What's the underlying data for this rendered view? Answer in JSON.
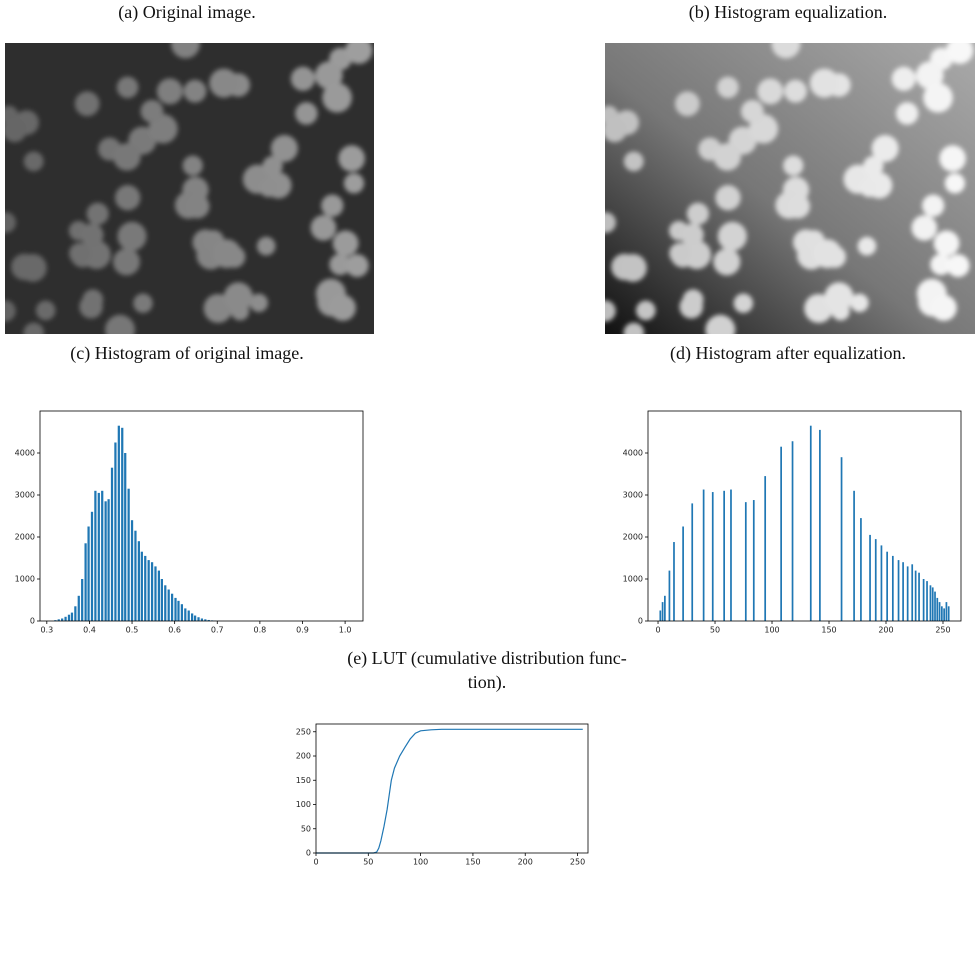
{
  "images": [
    {
      "caption": "(a) Original image."
    },
    {
      "caption": "(b) Histogram equalization."
    }
  ],
  "chart_data": [
    {
      "type": "bar",
      "title_lines": [
        "(c) Histogram of original image."
      ],
      "color": "#1f77b4",
      "x": [
        0.32,
        0.328,
        0.336,
        0.344,
        0.352,
        0.359,
        0.367,
        0.375,
        0.383,
        0.391,
        0.398,
        0.406,
        0.414,
        0.422,
        0.43,
        0.438,
        0.445,
        0.453,
        0.461,
        0.469,
        0.477,
        0.484,
        0.492,
        0.5,
        0.508,
        0.516,
        0.523,
        0.531,
        0.539,
        0.547,
        0.555,
        0.563,
        0.57,
        0.578,
        0.586,
        0.594,
        0.602,
        0.609,
        0.617,
        0.625,
        0.633,
        0.641,
        0.648,
        0.656,
        0.664,
        0.672,
        0.68,
        0.688,
        0.695,
        0.703
      ],
      "values": [
        20,
        40,
        60,
        100,
        150,
        200,
        350,
        600,
        1000,
        1850,
        2250,
        2600,
        3100,
        3050,
        3100,
        2850,
        2900,
        3650,
        4250,
        4650,
        4600,
        4000,
        3150,
        2400,
        2150,
        1900,
        1650,
        1550,
        1450,
        1400,
        1300,
        1200,
        1000,
        850,
        750,
        650,
        550,
        480,
        400,
        300,
        250,
        180,
        130,
        90,
        60,
        40,
        25,
        15,
        8,
        5
      ],
      "xlim": [
        0.284,
        1.042
      ],
      "xticks": [
        0.3,
        0.4,
        0.5,
        0.6,
        0.7,
        0.8,
        0.9,
        {
          "value": 1,
          "label": "1.0"
        }
      ],
      "ylim": [
        0,
        5000
      ],
      "yticks": [
        0,
        1000,
        2000,
        3000,
        4000
      ]
    },
    {
      "type": "bar",
      "title_lines": [
        "(d) Histogram after equalization."
      ],
      "color": "#1f77b4",
      "x": [
        2,
        4,
        6,
        10,
        14,
        22,
        30,
        40,
        48,
        58,
        64,
        77,
        84,
        94,
        108,
        118,
        134,
        142,
        161,
        172,
        178,
        186,
        191,
        196,
        201,
        206,
        211,
        215,
        219,
        223,
        226,
        229,
        233,
        236,
        239,
        241,
        243,
        245,
        247,
        249,
        251,
        253,
        255
      ],
      "values": [
        250,
        450,
        600,
        1200,
        1880,
        2250,
        2800,
        3130,
        3070,
        3100,
        3130,
        2830,
        2880,
        3450,
        4150,
        4280,
        4650,
        4550,
        3900,
        3100,
        2450,
        2050,
        1950,
        1800,
        1650,
        1550,
        1450,
        1400,
        1300,
        1350,
        1200,
        1150,
        1000,
        950,
        850,
        800,
        700,
        550,
        450,
        350,
        300,
        450,
        350
      ],
      "xlim": [
        -8.8,
        265.8
      ],
      "xticks": [
        0,
        50,
        100,
        150,
        200,
        250
      ],
      "ylim": [
        0,
        5000
      ],
      "yticks": [
        0,
        1000,
        2000,
        3000,
        4000
      ]
    },
    {
      "type": "line",
      "title_lines": [
        "(e) LUT (cumulative distribution func-",
        "tion)."
      ],
      "color": "#1f77b4",
      "x": [
        0,
        50,
        55,
        58,
        60,
        62,
        65,
        68,
        70,
        72,
        75,
        80,
        85,
        90,
        95,
        100,
        110,
        120,
        255
      ],
      "values": [
        0,
        0,
        0,
        2,
        10,
        25,
        55,
        90,
        120,
        150,
        175,
        200,
        218,
        235,
        247,
        252,
        254,
        255,
        255
      ],
      "xlim": [
        0,
        260
      ],
      "xticks": [
        0,
        50,
        100,
        150,
        200,
        250
      ],
      "ylim": [
        0,
        266
      ],
      "yticks": [
        0,
        50,
        100,
        150,
        200,
        250
      ]
    }
  ]
}
